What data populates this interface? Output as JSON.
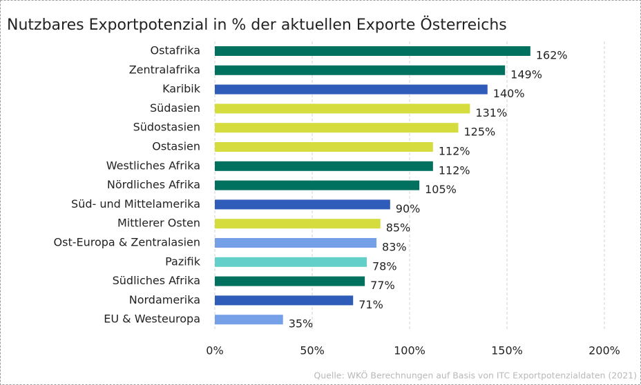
{
  "chart_data": {
    "type": "barh",
    "title": "Nutzbares Exportpotenzial in % der aktuellen Exporte Österreichs",
    "source": "Quelle: WKÖ Berechnungen auf Basis von ITC Exportpotenzialdaten (2021)",
    "categories": [
      "Ostafrika",
      "Zentralafrika",
      "Karibik",
      "Südasien",
      "Südostasien",
      "Ostasien",
      "Westliches Afrika",
      "Nördliches Afrika",
      "Süd- und Mittelamerika",
      "Mittlerer Osten",
      "Ost-Europa & Zentralasien",
      "Pazifik",
      "Südliches Afrika",
      "Nordamerika",
      "EU & Westeuropa"
    ],
    "values": [
      162,
      149,
      140,
      131,
      125,
      112,
      112,
      105,
      90,
      85,
      83,
      78,
      77,
      71,
      35
    ],
    "value_labels": [
      "162%",
      "149%",
      "140%",
      "131%",
      "125%",
      "112%",
      "112%",
      "105%",
      "90%",
      "85%",
      "83%",
      "78%",
      "77%",
      "71%",
      "35%"
    ],
    "colors": [
      "#00705f",
      "#00705f",
      "#2f5cb8",
      "#d4dc3e",
      "#d4dc3e",
      "#d4dc3e",
      "#00705f",
      "#00705f",
      "#2f5cb8",
      "#d4dc3e",
      "#75a0e8",
      "#62cfc9",
      "#00705f",
      "#2f5cb8",
      "#75a0e8"
    ],
    "xlim": [
      0,
      200
    ],
    "xticks": [
      {
        "value": 0,
        "label": "0%"
      },
      {
        "value": 50,
        "label": "50%"
      },
      {
        "value": 100,
        "label": "100%"
      },
      {
        "value": 150,
        "label": "150%"
      },
      {
        "value": 200,
        "label": "200%"
      }
    ],
    "grid": true
  }
}
